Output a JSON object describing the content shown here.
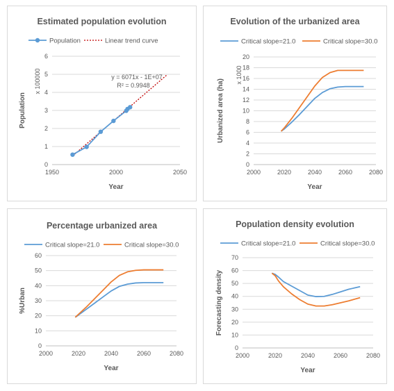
{
  "chart_data": [
    {
      "type": "scatter",
      "title": "Estimated population evolution",
      "xlabel": "Year",
      "ylabel": "Population",
      "unit": "x 100000",
      "xlim": [
        1950,
        2050
      ],
      "ylim": [
        0,
        6
      ],
      "xticks": [
        1950,
        2000,
        2050
      ],
      "yticks": [
        0,
        1,
        2,
        3,
        4,
        5,
        6
      ],
      "legend_position": "top",
      "equation": "y = 6071x - 1E+07",
      "r2": "R² = 0.9948",
      "series": [
        {
          "name": "Population",
          "color": "#5b9bd5",
          "x": [
            1966,
            1977,
            1988,
            1998,
            2008,
            2009,
            2011
          ],
          "y": [
            0.55,
            0.98,
            1.82,
            2.42,
            2.98,
            3.08,
            3.18
          ]
        }
      ],
      "trend": {
        "name": "Linear trend curve",
        "color": "#c00000",
        "x": [
          1966,
          2040
        ],
        "y": [
          0.48,
          4.98
        ]
      }
    },
    {
      "type": "line",
      "title": "Evolution of the urbanized area",
      "xlabel": "Year",
      "ylabel": "Urbanized area (ha)",
      "unit": "x 1000",
      "xlim": [
        2000,
        2080
      ],
      "ylim": [
        0,
        20
      ],
      "xticks": [
        2000,
        2020,
        2040,
        2060,
        2080
      ],
      "yticks": [
        0,
        2,
        4,
        6,
        8,
        10,
        12,
        14,
        16,
        18,
        20
      ],
      "legend_position": "top",
      "series": [
        {
          "name": "Critical slope=21.0",
          "color": "#5b9bd5",
          "x": [
            2018,
            2020,
            2025,
            2030,
            2035,
            2040,
            2045,
            2050,
            2055,
            2060,
            2065,
            2072
          ],
          "y": [
            6.2,
            6.6,
            7.9,
            9.3,
            10.8,
            12.3,
            13.4,
            14.1,
            14.4,
            14.5,
            14.5,
            14.5
          ]
        },
        {
          "name": "Critical slope=30.0",
          "color": "#ed7d31",
          "x": [
            2018,
            2020,
            2025,
            2030,
            2035,
            2040,
            2045,
            2050,
            2055,
            2060,
            2065,
            2072
          ],
          "y": [
            6.2,
            6.8,
            8.6,
            10.6,
            12.6,
            14.6,
            16.2,
            17.1,
            17.5,
            17.5,
            17.5,
            17.5
          ]
        }
      ]
    },
    {
      "type": "line",
      "title": "Percentage urbanized area",
      "xlabel": "Year",
      "ylabel": "%Urban",
      "xlim": [
        2000,
        2080
      ],
      "ylim": [
        0,
        60
      ],
      "xticks": [
        2000,
        2020,
        2040,
        2060,
        2080
      ],
      "yticks": [
        0,
        10,
        20,
        30,
        40,
        50,
        60
      ],
      "legend_position": "top",
      "series": [
        {
          "name": "Critical slope=21.0",
          "color": "#5b9bd5",
          "x": [
            2018,
            2020,
            2025,
            2030,
            2035,
            2040,
            2045,
            2050,
            2055,
            2060,
            2065,
            2072
          ],
          "y": [
            19,
            20.5,
            24.5,
            28.5,
            32.5,
            36.5,
            39.5,
            41,
            41.8,
            42,
            42,
            42
          ]
        },
        {
          "name": "Critical slope=30.0",
          "color": "#ed7d31",
          "x": [
            2018,
            2020,
            2025,
            2030,
            2035,
            2040,
            2045,
            2050,
            2055,
            2060,
            2065,
            2072
          ],
          "y": [
            19,
            21,
            26,
            31.5,
            37,
            42.5,
            46.8,
            49.2,
            50.2,
            50.5,
            50.5,
            50.5
          ]
        }
      ]
    },
    {
      "type": "line",
      "title": "Population density evolution",
      "xlabel": "Year",
      "ylabel": "Forecasting density",
      "xlim": [
        2000,
        2080
      ],
      "ylim": [
        0,
        70
      ],
      "xticks": [
        2000,
        2020,
        2040,
        2060,
        2080
      ],
      "yticks": [
        0,
        10,
        20,
        30,
        40,
        50,
        60,
        70
      ],
      "legend_position": "top",
      "series": [
        {
          "name": "Critical slope=21.0",
          "color": "#5b9bd5",
          "x": [
            2018,
            2020,
            2022,
            2025,
            2030,
            2035,
            2040,
            2045,
            2050,
            2055,
            2060,
            2065,
            2072
          ],
          "y": [
            58,
            57,
            55,
            51.5,
            48,
            44.5,
            41,
            39.8,
            40,
            41.5,
            43.5,
            45.5,
            47.5
          ]
        },
        {
          "name": "Critical slope=30.0",
          "color": "#ed7d31",
          "x": [
            2018,
            2020,
            2022,
            2025,
            2030,
            2035,
            2040,
            2045,
            2050,
            2055,
            2060,
            2065,
            2072
          ],
          "y": [
            58,
            56,
            52,
            47.5,
            42,
            37.5,
            34,
            32.5,
            32.5,
            33.5,
            35,
            36.5,
            39
          ]
        }
      ]
    }
  ]
}
